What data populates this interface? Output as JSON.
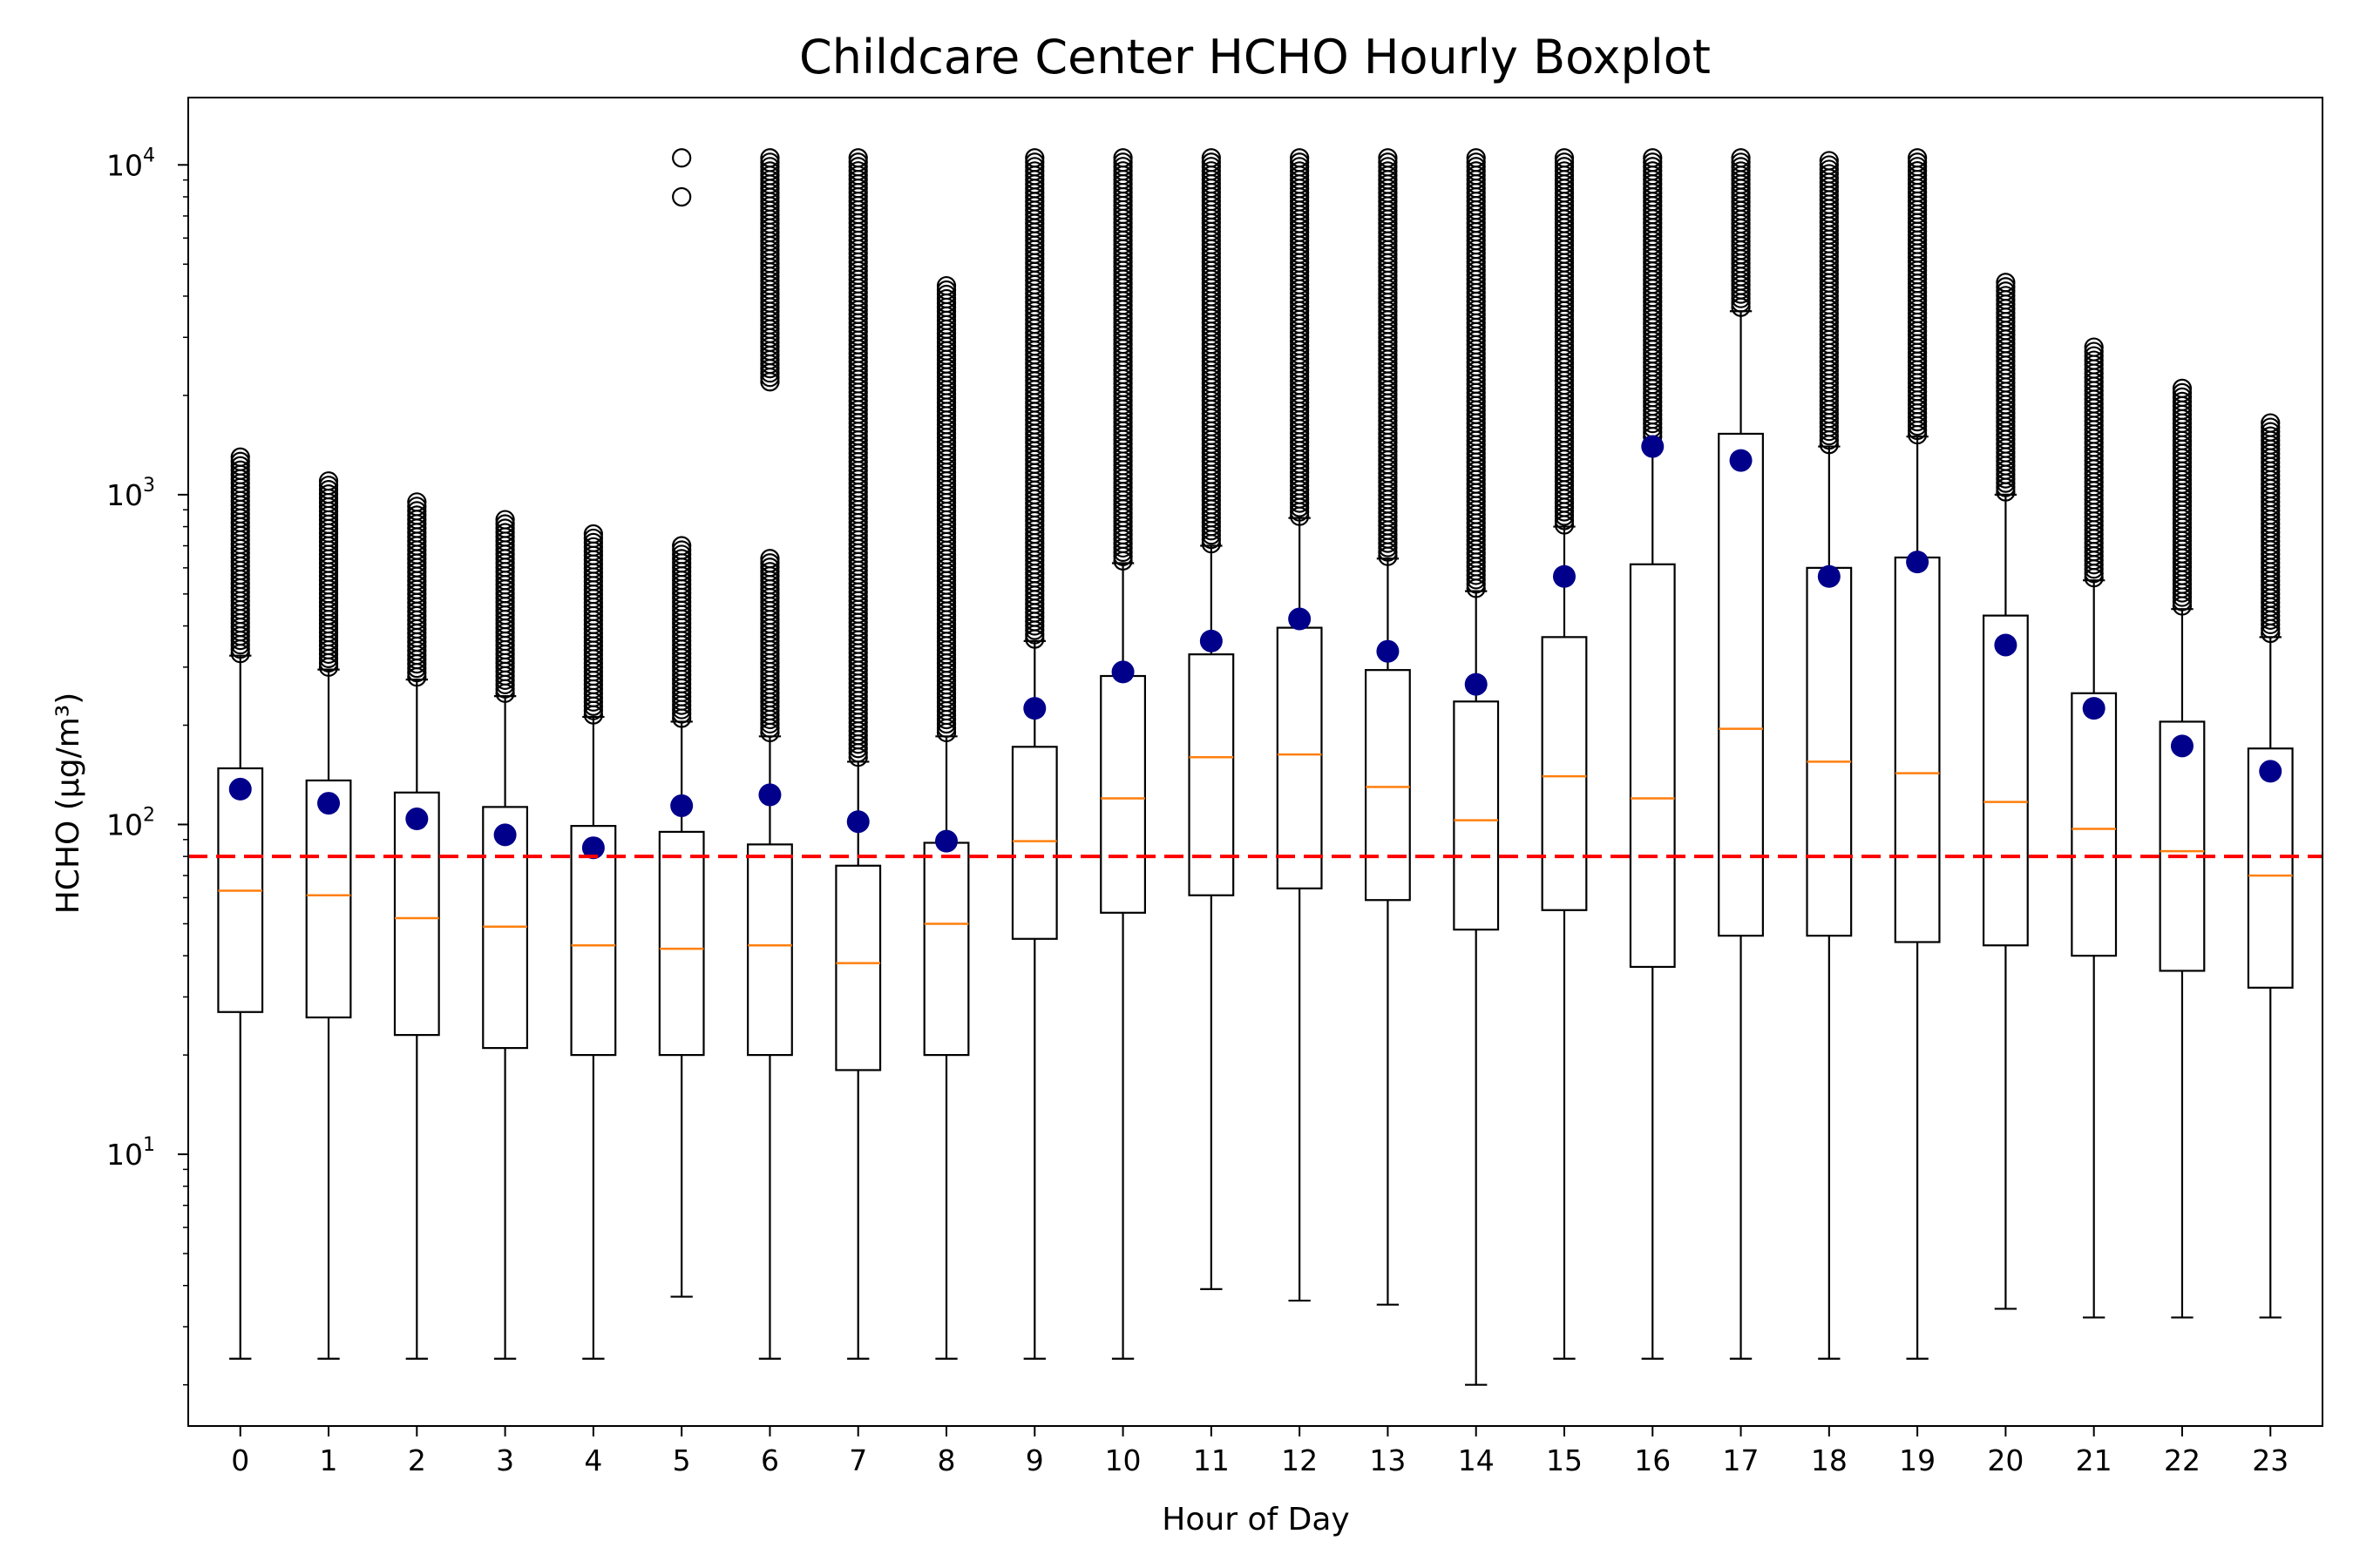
{
  "chart_data": {
    "type": "boxplot",
    "title": "Childcare Center HCHO Hourly Boxplot",
    "xlabel": "Hour of Day",
    "ylabel": "HCHO (µg/m³)",
    "y_scale": "log",
    "ylim": [
      1.5,
      16000
    ],
    "y_ticks": [
      {
        "value": 10,
        "base": "10",
        "exp": "1"
      },
      {
        "value": 100,
        "base": "10",
        "exp": "2"
      },
      {
        "value": 1000,
        "base": "10",
        "exp": "3"
      },
      {
        "value": 10000,
        "base": "10",
        "exp": "4"
      }
    ],
    "grid": false,
    "legend": "none",
    "colors": {
      "box": "#000000",
      "median": "#ff7f0e",
      "mean": "#00008b",
      "reference": "#ff0000"
    },
    "reference_line": {
      "value": 80,
      "style": "dashed"
    },
    "categories": [
      "0",
      "1",
      "2",
      "3",
      "4",
      "5",
      "6",
      "7",
      "8",
      "9",
      "10",
      "11",
      "12",
      "13",
      "14",
      "15",
      "16",
      "17",
      "18",
      "19",
      "20",
      "21",
      "22",
      "23"
    ],
    "boxes": [
      {
        "whislo": 2.4,
        "q1": 27,
        "med": 63,
        "q3": 148,
        "whishi": 325,
        "mean": 128,
        "fliers": [
          [
            330,
            1300
          ]
        ]
      },
      {
        "whislo": 2.4,
        "q1": 26,
        "med": 61,
        "q3": 136,
        "whishi": 295,
        "mean": 116,
        "fliers": [
          [
            300,
            1100
          ]
        ]
      },
      {
        "whislo": 2.4,
        "q1": 23,
        "med": 52,
        "q3": 125,
        "whishi": 275,
        "mean": 104,
        "fliers": [
          [
            280,
            950
          ]
        ]
      },
      {
        "whislo": 2.4,
        "q1": 21,
        "med": 49,
        "q3": 113,
        "whishi": 245,
        "mean": 93,
        "fliers": [
          [
            250,
            840
          ]
        ]
      },
      {
        "whislo": 2.4,
        "q1": 20,
        "med": 43,
        "q3": 99,
        "whishi": 212,
        "mean": 85,
        "fliers": [
          [
            215,
            760
          ]
        ]
      },
      {
        "whislo": 3.7,
        "q1": 20,
        "med": 42,
        "q3": 95,
        "whishi": 205,
        "mean": 114,
        "fliers": [
          [
            210,
            700
          ],
          [
            8000,
            8000
          ],
          [
            10500,
            10500
          ]
        ]
      },
      {
        "whislo": 2.4,
        "q1": 20,
        "med": 43,
        "q3": 87,
        "whishi": 185,
        "mean": 123,
        "fliers": [
          [
            190,
            640
          ],
          [
            2200,
            10500
          ]
        ]
      },
      {
        "whislo": 2.4,
        "q1": 18,
        "med": 38,
        "q3": 75,
        "whishi": 155,
        "mean": 102,
        "fliers": [
          [
            160,
            10500
          ]
        ]
      },
      {
        "whislo": 2.4,
        "q1": 20,
        "med": 50,
        "q3": 88,
        "whishi": 185,
        "mean": 89,
        "fliers": [
          [
            190,
            4300
          ]
        ]
      },
      {
        "whislo": 2.4,
        "q1": 45,
        "med": 89,
        "q3": 172,
        "whishi": 360,
        "mean": 225,
        "fliers": [
          [
            365,
            10500
          ]
        ]
      },
      {
        "whislo": 2.4,
        "q1": 54,
        "med": 120,
        "q3": 282,
        "whishi": 620,
        "mean": 290,
        "fliers": [
          [
            630,
            10500
          ]
        ]
      },
      {
        "whislo": 3.9,
        "q1": 61,
        "med": 160,
        "q3": 328,
        "whishi": 700,
        "mean": 360,
        "fliers": [
          [
            710,
            10500
          ]
        ]
      },
      {
        "whislo": 3.6,
        "q1": 64,
        "med": 163,
        "q3": 395,
        "whishi": 850,
        "mean": 420,
        "fliers": [
          [
            860,
            10500
          ]
        ]
      },
      {
        "whislo": 3.5,
        "q1": 59,
        "med": 130,
        "q3": 294,
        "whishi": 640,
        "mean": 335,
        "fliers": [
          [
            650,
            10500
          ]
        ]
      },
      {
        "whislo": 2.0,
        "q1": 48,
        "med": 103,
        "q3": 236,
        "whishi": 510,
        "mean": 266,
        "fliers": [
          [
            520,
            10500
          ]
        ]
      },
      {
        "whislo": 2.4,
        "q1": 55,
        "med": 140,
        "q3": 370,
        "whishi": 800,
        "mean": 565,
        "fliers": [
          [
            810,
            10500
          ]
        ]
      },
      {
        "whislo": 2.4,
        "q1": 37,
        "med": 120,
        "q3": 615,
        "whishi": 1400,
        "mean": 1400,
        "fliers": [
          [
            1500,
            10500
          ]
        ]
      },
      {
        "whislo": 2.4,
        "q1": 46,
        "med": 195,
        "q3": 1530,
        "whishi": 3600,
        "mean": 1270,
        "fliers": [
          [
            3700,
            10500
          ]
        ]
      },
      {
        "whislo": 2.4,
        "q1": 46,
        "med": 155,
        "q3": 600,
        "whishi": 1400,
        "mean": 565,
        "fliers": [
          [
            1420,
            10300
          ]
        ]
      },
      {
        "whislo": 2.4,
        "q1": 44,
        "med": 143,
        "q3": 645,
        "whishi": 1500,
        "mean": 625,
        "fliers": [
          [
            1520,
            10500
          ]
        ]
      },
      {
        "whislo": 3.4,
        "q1": 43,
        "med": 117,
        "q3": 430,
        "whishi": 1000,
        "mean": 350,
        "fliers": [
          [
            1020,
            4400
          ]
        ]
      },
      {
        "whislo": 3.2,
        "q1": 40,
        "med": 97,
        "q3": 250,
        "whishi": 550,
        "mean": 225,
        "fliers": [
          [
            560,
            2800
          ]
        ]
      },
      {
        "whislo": 3.2,
        "q1": 36,
        "med": 83,
        "q3": 205,
        "whishi": 450,
        "mean": 173,
        "fliers": [
          [
            460,
            2100
          ]
        ]
      },
      {
        "whislo": 3.2,
        "q1": 32,
        "med": 70,
        "q3": 170,
        "whishi": 370,
        "mean": 145,
        "fliers": [
          [
            380,
            1650
          ]
        ]
      }
    ]
  }
}
